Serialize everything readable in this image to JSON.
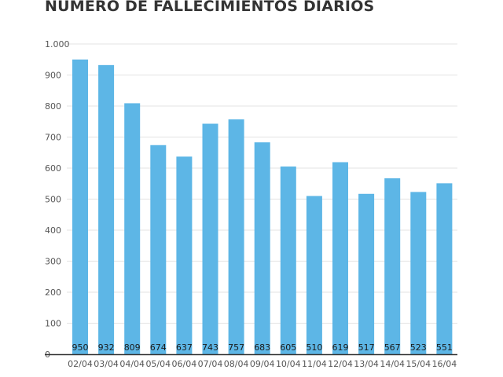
{
  "chart_data": {
    "type": "bar",
    "title": "NÚMERO DE FALLECIMIENTOS DIARIOS",
    "categories": [
      "02/04",
      "03/04",
      "04/04",
      "05/04",
      "06/04",
      "07/04",
      "08/04",
      "09/04",
      "10/04",
      "11/04",
      "12/04",
      "13/04",
      "14/04",
      "15/04",
      "16/04"
    ],
    "values": [
      950,
      932,
      809,
      674,
      637,
      743,
      757,
      683,
      605,
      510,
      619,
      517,
      567,
      523,
      551
    ],
    "data_labels": [
      "950",
      "932",
      "809",
      "674",
      "637",
      "743",
      "757",
      "683",
      "605",
      "510",
      "619",
      "517",
      "567",
      "523",
      "551"
    ],
    "yticks": [
      0,
      100,
      200,
      300,
      400,
      500,
      600,
      700,
      800,
      900,
      1000
    ],
    "ytick_labels": [
      "0",
      "100",
      "200",
      "300",
      "400",
      "500",
      "600",
      "700",
      "800",
      "900",
      "1.000"
    ],
    "ylim": [
      0,
      1000
    ],
    "xlabel": "",
    "ylabel": "",
    "grid": true,
    "colors": {
      "bar": "#5db6e6",
      "grid": "#e3e3e3",
      "axis": "#333333",
      "title": "#333333"
    }
  }
}
